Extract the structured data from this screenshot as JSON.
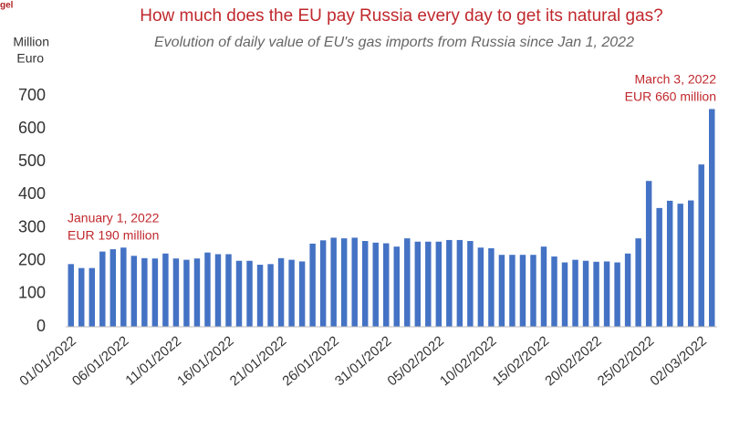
{
  "chart_data": {
    "type": "bar",
    "logo": "gel",
    "title": "How much does the EU pay Russia every day to get its natural gas?",
    "subtitle": "Evolution of daily value of EU's gas imports from Russia since Jan 1, 2022",
    "ylabel": [
      "Million",
      "Euro"
    ],
    "annotations": [
      {
        "lines": [
          "January 1, 2022",
          "EUR 190 million"
        ]
      },
      {
        "lines": [
          "March 3, 2022",
          "EUR 660 million"
        ]
      }
    ],
    "categories": [
      "01/01/2022",
      null,
      null,
      null,
      null,
      "06/01/2022",
      null,
      null,
      null,
      null,
      "11/01/2022",
      null,
      null,
      null,
      null,
      "16/01/2022",
      null,
      null,
      null,
      null,
      "21/01/2022",
      null,
      null,
      null,
      null,
      "26/01/2022",
      null,
      null,
      null,
      null,
      "31/01/2022",
      null,
      null,
      null,
      null,
      "05/02/2022",
      null,
      null,
      null,
      null,
      "10/02/2022",
      null,
      null,
      null,
      null,
      "15/02/2022",
      null,
      null,
      null,
      null,
      "20/02/2022",
      null,
      null,
      null,
      null,
      "25/02/2022",
      null,
      null,
      null,
      null,
      "02/03/2022",
      null
    ],
    "values": [
      190,
      178,
      178,
      228,
      235,
      240,
      215,
      208,
      207,
      222,
      207,
      203,
      207,
      225,
      220,
      220,
      200,
      200,
      188,
      190,
      208,
      203,
      198,
      252,
      262,
      270,
      268,
      270,
      260,
      255,
      253,
      243,
      268,
      258,
      258,
      258,
      263,
      263,
      260,
      240,
      238,
      218,
      218,
      218,
      218,
      243,
      213,
      195,
      203,
      200,
      197,
      198,
      195,
      222,
      268,
      442,
      360,
      382,
      373,
      383,
      492,
      660
    ],
    "color": "#4472c4",
    "ylim": [
      0,
      700
    ],
    "yticks": [
      0,
      100,
      200,
      300,
      400,
      500,
      600,
      700
    ],
    "grid": false
  }
}
